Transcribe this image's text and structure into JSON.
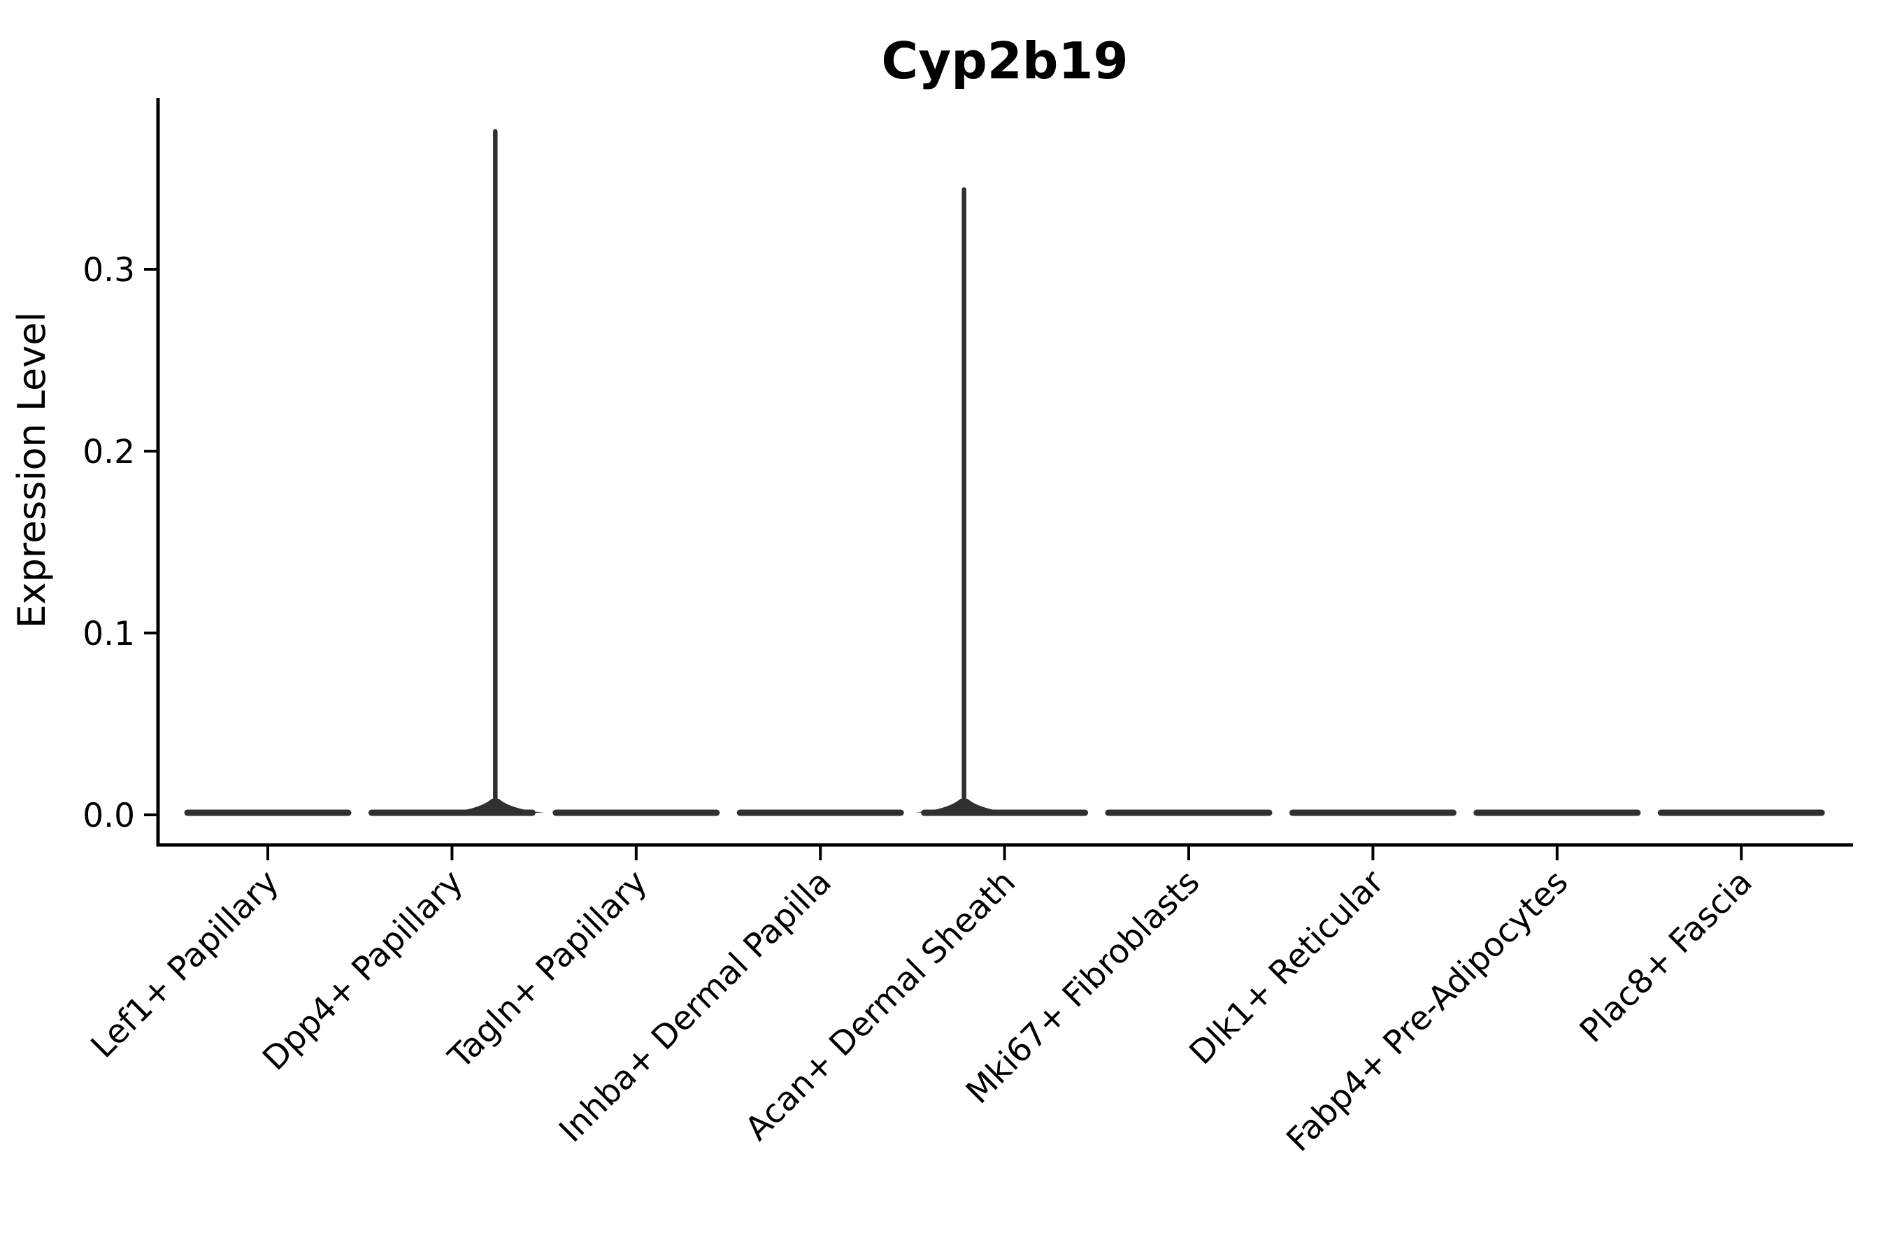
{
  "colors": {
    "violin_fill": "#303030",
    "axis": "#000000",
    "text": "#000000",
    "background": "#ffffff"
  },
  "chart_data": {
    "type": "violin",
    "title": "Cyp2b19",
    "ylabel": "Expression Level",
    "xlabel": "",
    "categories": [
      "Lef1+ Papillary",
      "Dpp4+ Papillary",
      "Tagln+ Papillary",
      "Inhba+ Dermal Papilla",
      "Acan+ Dermal Sheath",
      "Mki67+ Fibroblasts",
      "Dlk1+ Reticular",
      "Fabp4+ Pre-Adipocytes",
      "Plac8+ Fascia"
    ],
    "ytick_labels": [
      "0.0",
      "0.1",
      "0.2",
      "0.3"
    ],
    "ytick_values": [
      0.0,
      0.1,
      0.2,
      0.3
    ],
    "ylim": [
      -0.016,
      0.394
    ],
    "grid": false,
    "legend": null,
    "x_tick_rotation_deg": 45,
    "violins": [
      {
        "category": "Lef1+ Papillary",
        "density_bulk_at": 0.0,
        "peak_value": 0.0,
        "has_spike": false
      },
      {
        "category": "Dpp4+ Papillary",
        "density_bulk_at": 0.0,
        "peak_value": 0.377,
        "has_spike": true,
        "spike_offset_units": 0.235
      },
      {
        "category": "Tagln+ Papillary",
        "density_bulk_at": 0.0,
        "peak_value": 0.0,
        "has_spike": false
      },
      {
        "category": "Inhba+ Dermal Papilla",
        "density_bulk_at": 0.0,
        "peak_value": 0.0,
        "has_spike": false
      },
      {
        "category": "Acan+ Dermal Sheath",
        "density_bulk_at": 0.0,
        "peak_value": 0.345,
        "has_spike": true,
        "spike_offset_units": -0.22
      },
      {
        "category": "Mki67+ Fibroblasts",
        "density_bulk_at": 0.0,
        "peak_value": 0.0,
        "has_spike": false
      },
      {
        "category": "Dlk1+ Reticular",
        "density_bulk_at": 0.0,
        "peak_value": 0.0,
        "has_spike": false
      },
      {
        "category": "Fabp4+ Pre-Adipocytes",
        "density_bulk_at": 0.0,
        "peak_value": 0.0,
        "has_spike": false
      },
      {
        "category": "Plac8+ Fascia",
        "density_bulk_at": 0.0,
        "peak_value": 0.0,
        "has_spike": false
      }
    ]
  }
}
